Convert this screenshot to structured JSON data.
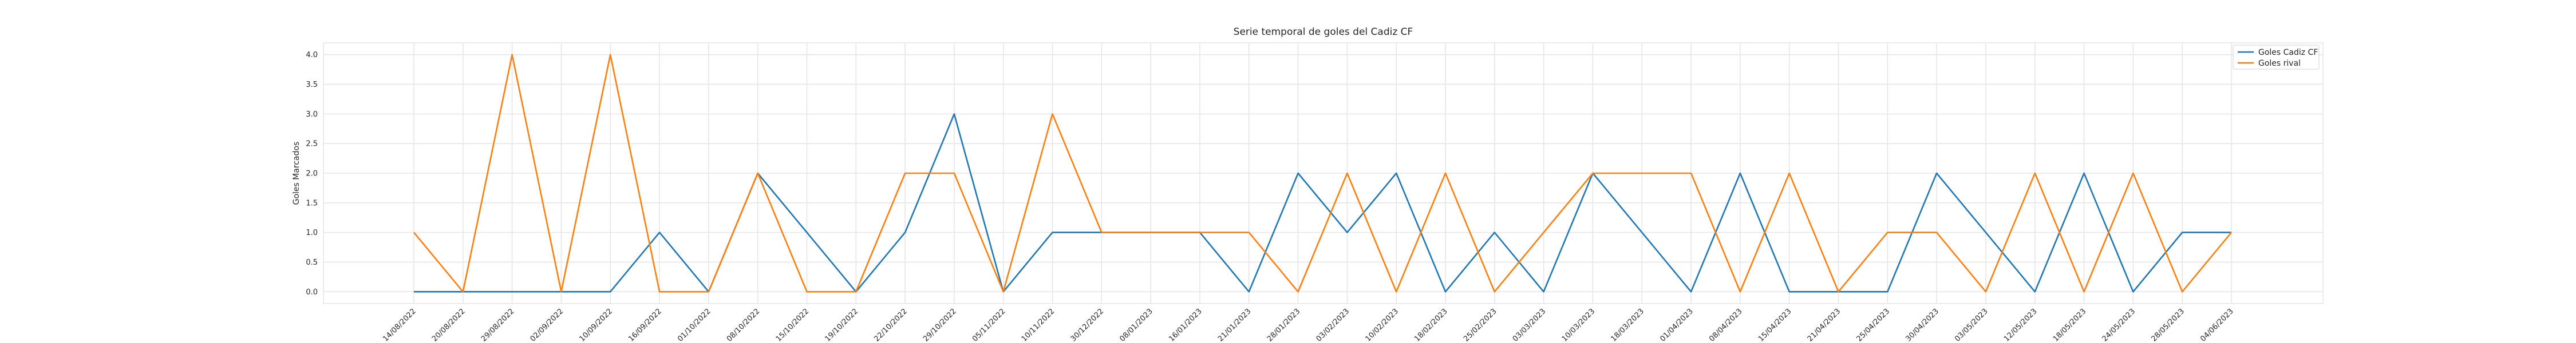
{
  "chart_data": {
    "type": "line",
    "title": "Serie temporal de goles del Cadiz CF",
    "xlabel": "",
    "ylabel": "Goles Marcados",
    "ylim": [
      -0.2,
      4.2
    ],
    "yticks": [
      "0.0",
      "0.5",
      "1.0",
      "1.5",
      "2.0",
      "2.5",
      "3.0",
      "3.5",
      "4.0"
    ],
    "grid": true,
    "legend_position": "top-right",
    "x": [
      "14/08/2022",
      "20/08/2022",
      "29/08/2022",
      "02/09/2022",
      "10/09/2022",
      "16/09/2022",
      "01/10/2022",
      "08/10/2022",
      "15/10/2022",
      "19/10/2022",
      "22/10/2022",
      "29/10/2022",
      "05/11/2022",
      "10/11/2022",
      "30/12/2022",
      "08/01/2023",
      "16/01/2023",
      "21/01/2023",
      "28/01/2023",
      "03/02/2023",
      "10/02/2023",
      "18/02/2023",
      "25/02/2023",
      "03/03/2023",
      "10/03/2023",
      "18/03/2023",
      "01/04/2023",
      "08/04/2023",
      "15/04/2023",
      "21/04/2023",
      "25/04/2023",
      "30/04/2023",
      "03/05/2023",
      "12/05/2023",
      "18/05/2023",
      "24/05/2023",
      "28/05/2023",
      "04/06/2023"
    ],
    "series": [
      {
        "name": "Goles Cadiz CF",
        "color": "#1f77b4",
        "values": [
          0,
          0,
          0,
          0,
          0,
          1,
          0,
          2,
          1,
          0,
          1,
          3,
          0,
          1,
          1,
          1,
          1,
          0,
          2,
          1,
          2,
          0,
          1,
          0,
          2,
          1,
          0,
          2,
          0,
          0,
          0,
          2,
          1,
          0,
          2,
          0,
          1,
          1
        ]
      },
      {
        "name": "Goles rival",
        "color": "#ff7f0e",
        "values": [
          1,
          0,
          4,
          0,
          4,
          0,
          0,
          2,
          0,
          0,
          2,
          2,
          0,
          3,
          1,
          1,
          1,
          1,
          0,
          2,
          0,
          2,
          0,
          1,
          2,
          2,
          2,
          0,
          2,
          0,
          1,
          1,
          0,
          2,
          0,
          2,
          0,
          1
        ]
      }
    ]
  }
}
